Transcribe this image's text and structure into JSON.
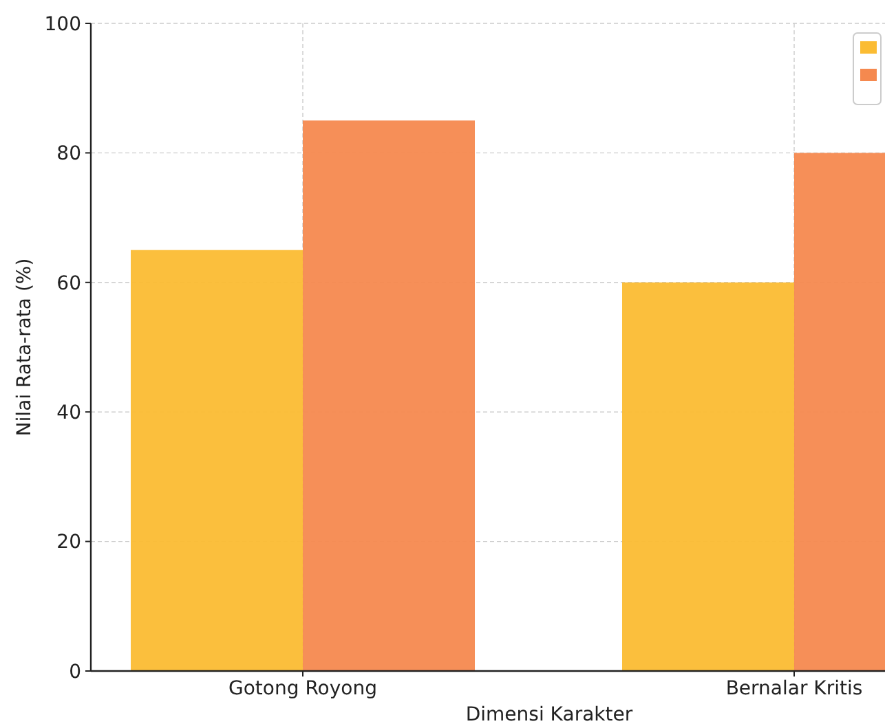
{
  "chart_data": {
    "type": "bar",
    "xlabel": "Dimensi Karakter",
    "ylabel": "Nilai Rata-rata (%)",
    "categories": [
      "Gotong Royong",
      "Bernalar Kritis"
    ],
    "series": [
      {
        "color": "#fbbc33",
        "values": [
          65,
          60
        ]
      },
      {
        "color": "#f5894f",
        "values": [
          85,
          80
        ]
      }
    ],
    "ylim": [
      0,
      100
    ],
    "yticks": [
      0,
      20,
      40,
      60,
      80,
      100
    ],
    "grid": true
  }
}
